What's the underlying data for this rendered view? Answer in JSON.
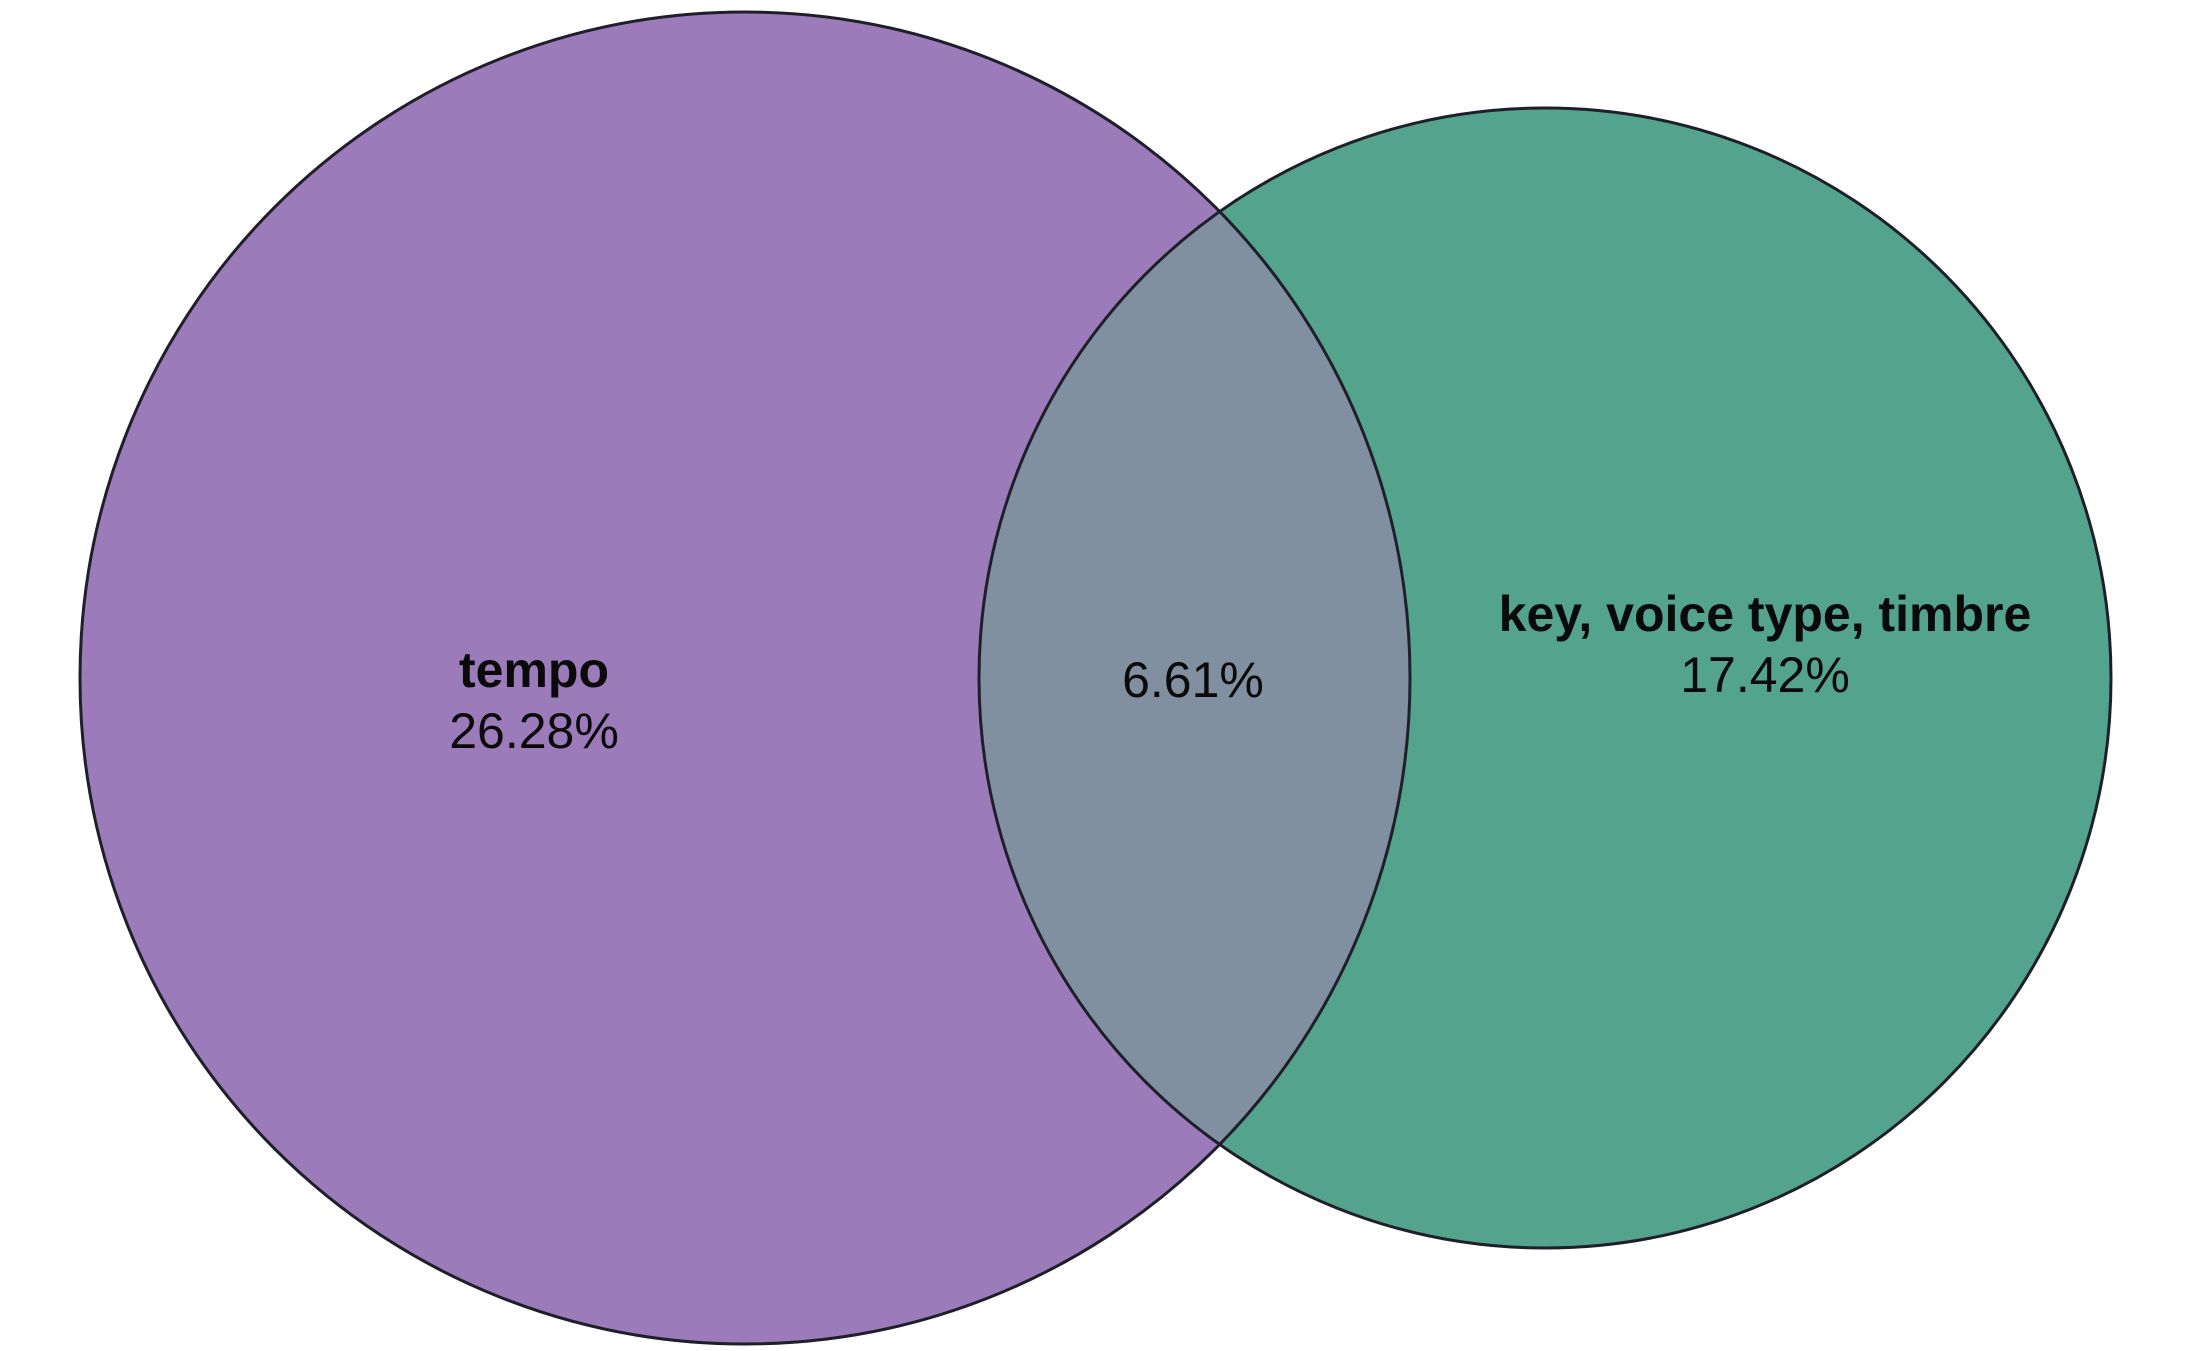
{
  "diagram": {
    "type": "venn",
    "sets": [
      {
        "name": "tempo",
        "only_percent": "26.28%",
        "color": "#9b7bb9"
      },
      {
        "name": "key, voice type, timbre",
        "only_percent": "17.42%",
        "color": "#54a38d"
      }
    ],
    "intersection": {
      "percent": "6.61%",
      "color": "#8090a1"
    },
    "outline_color": "#1f1f2a"
  }
}
